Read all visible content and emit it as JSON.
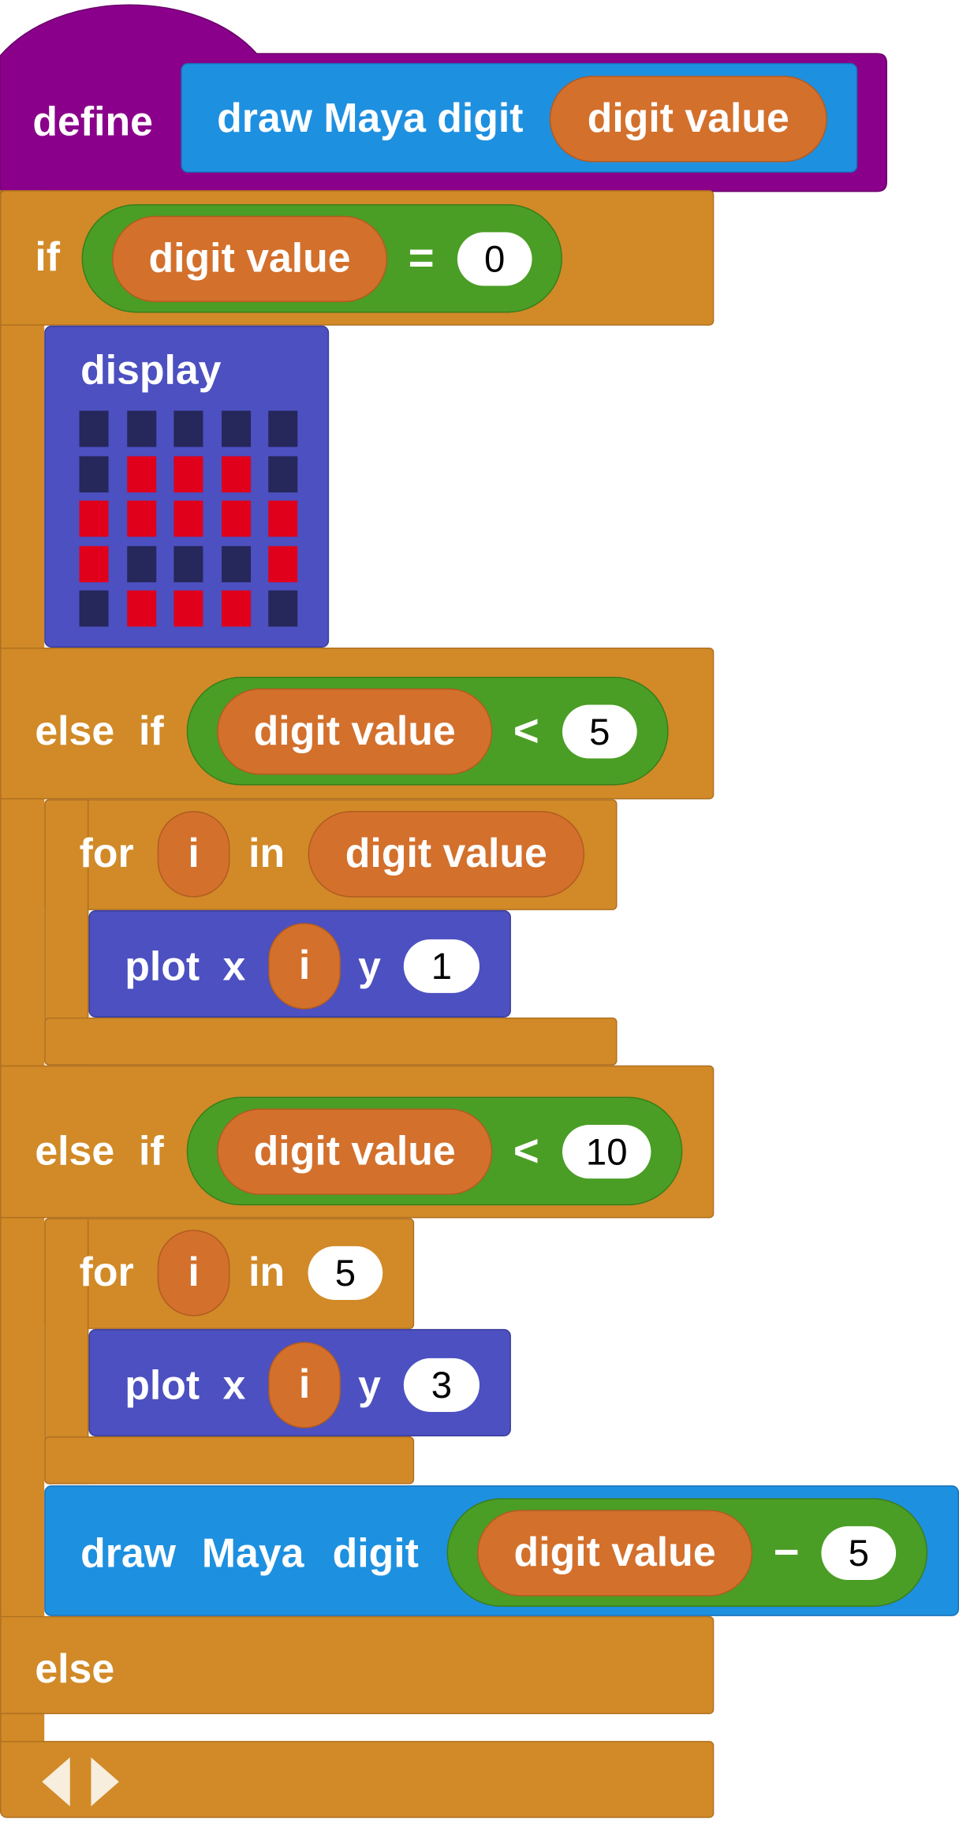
{
  "define_block": {
    "keyword": "define",
    "prototype": {
      "label": "draw Maya digit",
      "param": "digit value"
    }
  },
  "if_block": {
    "if": {
      "keyword": "if",
      "condition": {
        "var": "digit value",
        "op": "=",
        "value": "0"
      }
    },
    "display_block": {
      "label": "display",
      "grid": [
        [
          0,
          0,
          0,
          0,
          0
        ],
        [
          0,
          1,
          1,
          1,
          0
        ],
        [
          1,
          1,
          1,
          1,
          1
        ],
        [
          1,
          0,
          0,
          0,
          1
        ],
        [
          0,
          1,
          1,
          1,
          0
        ]
      ]
    },
    "elseif1": {
      "keyword_else": "else",
      "keyword_if": "if",
      "condition": {
        "var": "digit value",
        "op": "<",
        "value": "5"
      },
      "for_block": {
        "for": "for",
        "var": "i",
        "in": "in",
        "range": "digit value"
      },
      "plot_block": {
        "label": "plot",
        "x_label": "x",
        "x": "i",
        "y_label": "y",
        "y": "1"
      }
    },
    "elseif2": {
      "keyword_else": "else",
      "keyword_if": "if",
      "condition": {
        "var": "digit value",
        "op": "<",
        "value": "10"
      },
      "for_block": {
        "for": "for",
        "var": "i",
        "in": "in",
        "range": "5"
      },
      "plot_block": {
        "label": "plot",
        "x_label": "x",
        "x": "i",
        "y_label": "y",
        "y": "3"
      },
      "call_block": {
        "label_1": "draw",
        "label_2": "Maya",
        "label_3": "digit",
        "arg_var": "digit value",
        "arg_op": "−",
        "arg_value": "5"
      }
    },
    "else": {
      "keyword": "else"
    }
  },
  "colors": {
    "define": "#8a008a",
    "control": "#d18a27",
    "custom_block": "#1e90e0",
    "variable": "#d3702c",
    "condition": "#4a9e25",
    "led": "#4c50c0",
    "led_on": "#e0001b",
    "led_off": "#26275a"
  }
}
